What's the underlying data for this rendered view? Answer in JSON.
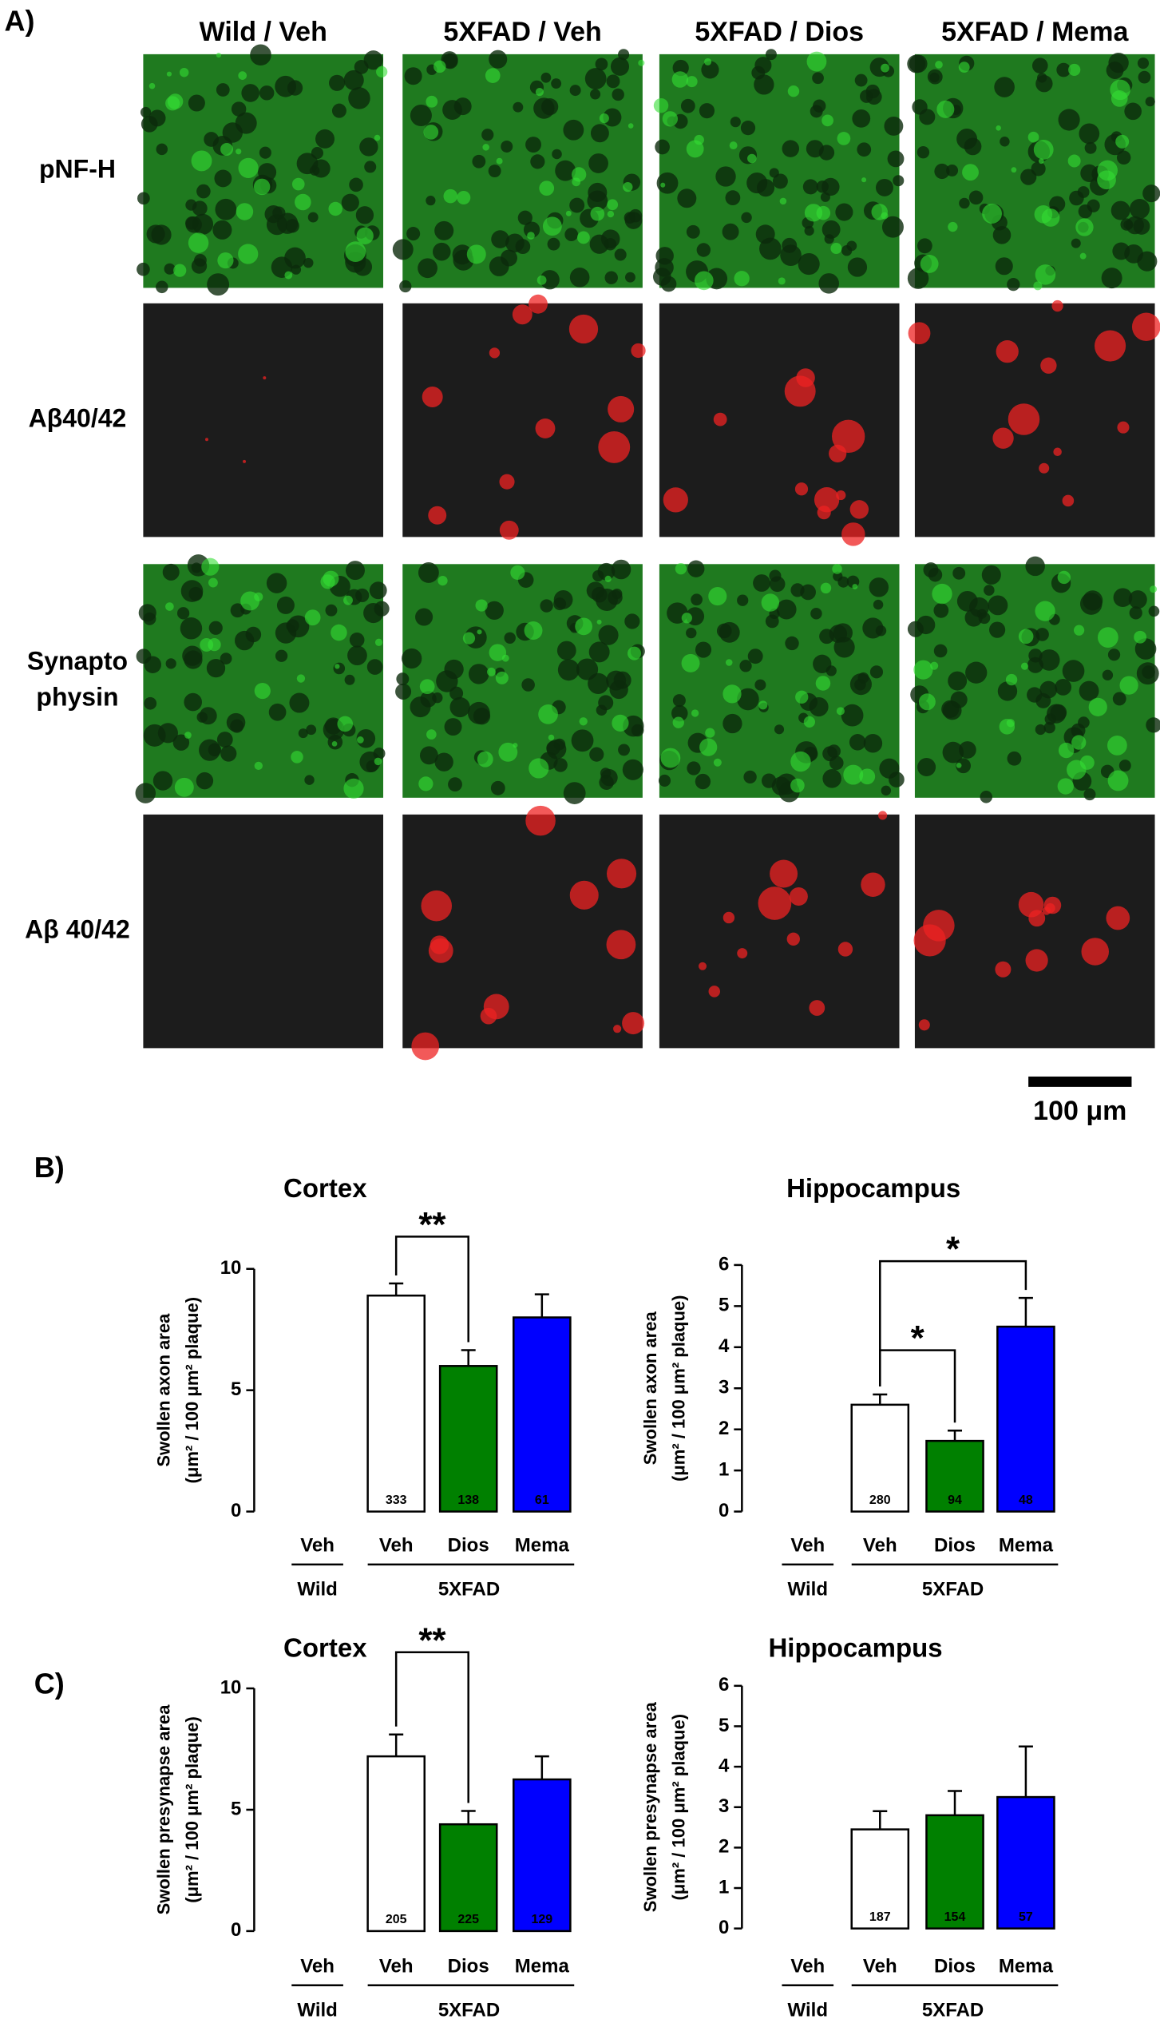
{
  "panel_labels": [
    "A)",
    "B)",
    "C)"
  ],
  "panel_a": {
    "columns": [
      "Wild / Veh",
      "5XFAD / Veh",
      "5XFAD / Dios",
      "5XFAD / Mema"
    ],
    "rows": [
      [
        "pNF-H"
      ],
      [
        "Aβ40/42"
      ],
      [
        "Synapto",
        "physin"
      ],
      [
        "Aβ 40/42"
      ]
    ],
    "scale_bar": "100 μm"
  },
  "chart_data": [
    {
      "type": "bar",
      "title": "Cortex",
      "ylabel": [
        "Swollen axon area",
        "(μm² / 100 μm² plaque)"
      ],
      "categories": [
        "Veh",
        "Veh",
        "Dios",
        "Mema"
      ],
      "groups": [
        "Wild",
        "5XFAD"
      ],
      "values": [
        0,
        8.9,
        6.0,
        8.0
      ],
      "errors": [
        null,
        0.5,
        0.65,
        0.95
      ],
      "colors": [
        "#ffffff",
        "#ffffff",
        "#008000",
        "#0000ff"
      ],
      "n_labels": [
        null,
        333,
        138,
        61
      ],
      "ylim": [
        0,
        10
      ],
      "yticks": [
        0,
        5,
        10
      ],
      "significance": [
        "**"
      ]
    },
    {
      "type": "bar",
      "title": "Hippocampus",
      "ylabel": [
        "Swollen axon area",
        "(μm² / 100 μm² plaque)"
      ],
      "categories": [
        "Veh",
        "Veh",
        "Dios",
        "Mema"
      ],
      "groups": [
        "Wild",
        "5XFAD"
      ],
      "values": [
        0,
        2.6,
        1.72,
        4.5
      ],
      "errors": [
        null,
        0.25,
        0.25,
        0.7
      ],
      "colors": [
        "#ffffff",
        "#ffffff",
        "#008000",
        "#0000ff"
      ],
      "n_labels": [
        null,
        280,
        94,
        48
      ],
      "ylim": [
        0,
        6
      ],
      "yticks": [
        0,
        1,
        2,
        3,
        4,
        5,
        6
      ],
      "significance": [
        "*",
        "*"
      ]
    },
    {
      "type": "bar",
      "title": "Cortex",
      "ylabel": [
        "Swollen presynapse area",
        "(μm² / 100 μm² plaque)"
      ],
      "categories": [
        "Veh",
        "Veh",
        "Dios",
        "Mema"
      ],
      "groups": [
        "Wild",
        "5XFAD"
      ],
      "values": [
        0,
        7.2,
        4.4,
        6.25
      ],
      "errors": [
        null,
        0.9,
        0.55,
        0.95
      ],
      "colors": [
        "#ffffff",
        "#ffffff",
        "#008000",
        "#0000ff"
      ],
      "n_labels": [
        null,
        205,
        225,
        129
      ],
      "ylim": [
        0,
        10
      ],
      "yticks": [
        0,
        5,
        10
      ],
      "significance": [
        "**"
      ]
    },
    {
      "type": "bar",
      "title": "Hippocampus",
      "ylabel": [
        "Swollen presynapse area",
        "(μm² / 100 μm² plaque)"
      ],
      "categories": [
        "Veh",
        "Veh",
        "Dios",
        "Mema"
      ],
      "groups": [
        "Wild",
        "5XFAD"
      ],
      "values": [
        0,
        2.45,
        2.8,
        3.25
      ],
      "errors": [
        null,
        0.45,
        0.6,
        1.25
      ],
      "colors": [
        "#ffffff",
        "#ffffff",
        "#008000",
        "#0000ff"
      ],
      "n_labels": [
        null,
        187,
        154,
        57
      ],
      "ylim": [
        0,
        6
      ],
      "yticks": [
        0,
        1,
        2,
        3,
        4,
        5,
        6
      ],
      "significance": []
    }
  ]
}
